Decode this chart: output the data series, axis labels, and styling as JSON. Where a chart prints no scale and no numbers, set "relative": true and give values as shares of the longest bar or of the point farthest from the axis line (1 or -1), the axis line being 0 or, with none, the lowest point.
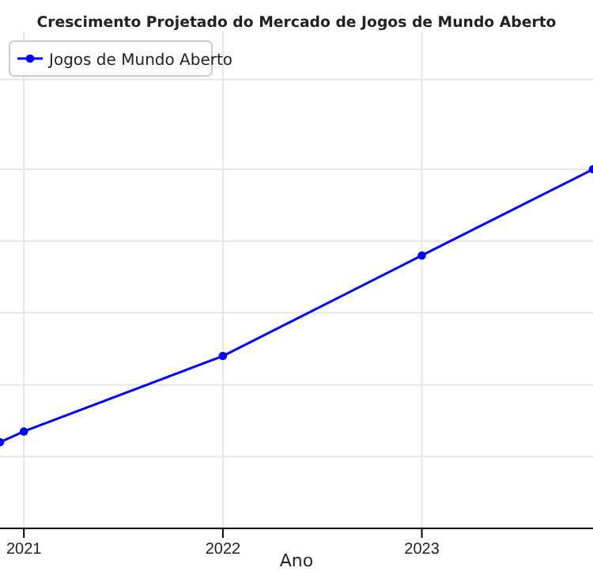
{
  "chart_data": {
    "type": "line",
    "title": "Crescimento Projetado do Mercado de Jogos de Mundo Aberto",
    "xlabel": "Ano",
    "x": [
      2020.88,
      2021,
      2022,
      2023,
      2023.86
    ],
    "series": [
      {
        "name": "Jogos de Mundo Aberto",
        "color": "#0000ff",
        "values": [
          0.24,
          0.27,
          0.48,
          0.76,
          1.0
        ]
      }
    ],
    "relative": true,
    "xlim": [
      2020.88,
      2023.86
    ],
    "xticks": [
      2021,
      2022,
      2023
    ],
    "grid": true,
    "legend": "top left",
    "marker": "circle",
    "line_style": "solid"
  }
}
